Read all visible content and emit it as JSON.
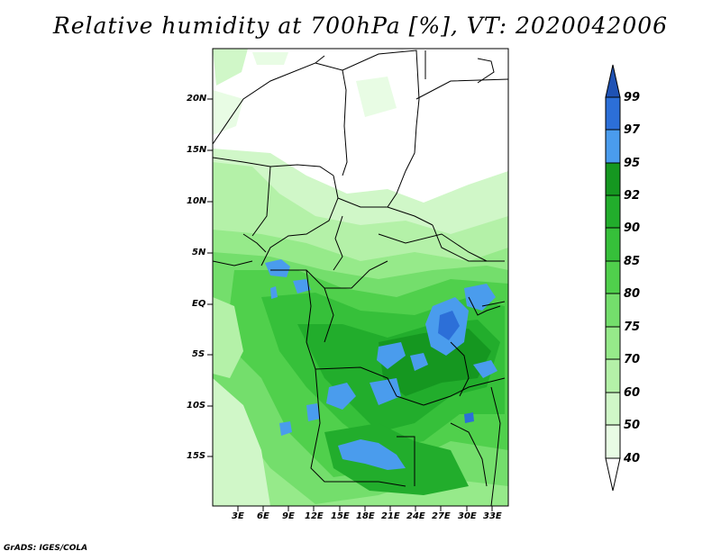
{
  "title": "Relative humidity at 700hPa [%], VT: 2020042006",
  "credit": "GrADS: IGES/COLA",
  "map": {
    "variable": "Relative humidity at 700hPa",
    "units": "%",
    "valid_time": "2020042006",
    "lat_labels": [
      "20N",
      "15N",
      "10N",
      "5N",
      "EQ",
      "5S",
      "10S",
      "15S"
    ],
    "lon_labels": [
      "3E",
      "6E",
      "9E",
      "12E",
      "15E",
      "18E",
      "21E",
      "24E",
      "27E",
      "30E",
      "33E"
    ]
  },
  "colorbar": {
    "levels": [
      "40",
      "50",
      "60",
      "70",
      "75",
      "80",
      "85",
      "90",
      "92",
      "95",
      "97",
      "99"
    ],
    "colors": [
      "#ffffff",
      "#e8fce4",
      "#d0f7c8",
      "#b4f1a8",
      "#96ea8a",
      "#74de6c",
      "#50d04c",
      "#36c03a",
      "#22ad2c",
      "#159720",
      "#4a9ced",
      "#2c6fd8",
      "#1f52b4"
    ],
    "extend_low": "#ffffff",
    "extend_high": "#1f52b4"
  }
}
